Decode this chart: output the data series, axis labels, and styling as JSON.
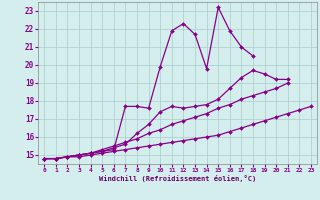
{
  "xlabel": "Windchill (Refroidissement éolien,°C)",
  "background_color": "#d4eeee",
  "grid_color": "#aacccc",
  "line_color": "#880088",
  "xlim": [
    -0.5,
    23.5
  ],
  "ylim": [
    14.5,
    23.5
  ],
  "xticks": [
    0,
    1,
    2,
    3,
    4,
    5,
    6,
    7,
    8,
    9,
    10,
    11,
    12,
    13,
    14,
    15,
    16,
    17,
    18,
    19,
    20,
    21,
    22,
    23
  ],
  "yticks": [
    15,
    16,
    17,
    18,
    19,
    20,
    21,
    22,
    23
  ],
  "series": [
    {
      "x": [
        0,
        1,
        2,
        3,
        4,
        5,
        6,
        7,
        8,
        9,
        10,
        11,
        12,
        13,
        14,
        15,
        16,
        17,
        18,
        19,
        20,
        21,
        22,
        23
      ],
      "y": [
        14.8,
        14.8,
        14.9,
        15.0,
        15.1,
        15.2,
        15.3,
        17.7,
        17.7,
        17.6,
        19.9,
        21.9,
        22.3,
        21.7,
        19.8,
        23.2,
        21.9,
        21.0,
        20.5,
        null,
        null,
        null,
        null,
        null
      ]
    },
    {
      "x": [
        0,
        1,
        2,
        3,
        4,
        5,
        6,
        7,
        8,
        9,
        10,
        11,
        12,
        13,
        14,
        15,
        16,
        17,
        18,
        19,
        20,
        21,
        22,
        23
      ],
      "y": [
        14.8,
        14.8,
        14.9,
        15.0,
        15.1,
        15.2,
        15.4,
        15.6,
        16.2,
        16.7,
        17.4,
        17.7,
        17.6,
        17.7,
        17.8,
        18.1,
        18.7,
        19.3,
        19.7,
        19.5,
        19.2,
        19.2,
        null,
        null
      ]
    },
    {
      "x": [
        0,
        1,
        2,
        3,
        4,
        5,
        6,
        7,
        8,
        9,
        10,
        11,
        12,
        13,
        14,
        15,
        16,
        17,
        18,
        19,
        20,
        21,
        22,
        23
      ],
      "y": [
        14.8,
        14.8,
        14.9,
        15.0,
        15.1,
        15.3,
        15.5,
        15.7,
        15.9,
        16.2,
        16.4,
        16.7,
        16.9,
        17.1,
        17.3,
        17.6,
        17.8,
        18.1,
        18.3,
        18.5,
        18.7,
        19.0,
        null,
        null
      ]
    },
    {
      "x": [
        0,
        1,
        2,
        3,
        4,
        5,
        6,
        7,
        8,
        9,
        10,
        11,
        12,
        13,
        14,
        15,
        16,
        17,
        18,
        19,
        20,
        21,
        22,
        23
      ],
      "y": [
        14.8,
        14.8,
        14.9,
        14.9,
        15.0,
        15.1,
        15.2,
        15.3,
        15.4,
        15.5,
        15.6,
        15.7,
        15.8,
        15.9,
        16.0,
        16.1,
        16.3,
        16.5,
        16.7,
        16.9,
        17.1,
        17.3,
        17.5,
        17.7
      ]
    }
  ]
}
